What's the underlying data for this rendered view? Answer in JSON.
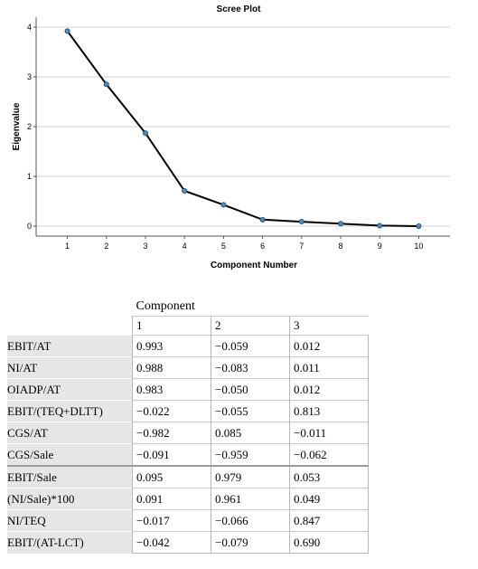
{
  "chart_data": {
    "type": "line",
    "title": "Scree Plot",
    "xlabel": "Component Number",
    "ylabel": "Eigenvalue",
    "x": [
      1,
      2,
      3,
      4,
      5,
      6,
      7,
      8,
      9,
      10
    ],
    "y": [
      3.92,
      2.85,
      1.87,
      0.71,
      0.43,
      0.13,
      0.09,
      0.05,
      0.01,
      0.0
    ],
    "xlim": [
      0.2,
      10.8
    ],
    "ylim": [
      -0.2,
      4.2
    ],
    "xticks": [
      1,
      2,
      3,
      4,
      5,
      6,
      7,
      8,
      9,
      10
    ],
    "yticks": [
      0,
      1,
      2,
      3,
      4
    ],
    "grid": "horizontal",
    "line_color": "#000000",
    "marker_color": "#4a90c8"
  },
  "table": {
    "group_header": "Component",
    "columns": [
      "1",
      "2",
      "3"
    ],
    "rows": [
      {
        "label": "EBIT/AT",
        "values": [
          "0.993",
          "−0.059",
          "0.012"
        ]
      },
      {
        "label": "NI/AT",
        "values": [
          "0.988",
          "−0.083",
          "0.011"
        ]
      },
      {
        "label": "OIADP/AT",
        "values": [
          "0.983",
          "−0.050",
          "0.012"
        ]
      },
      {
        "label": "EBIT/(TEQ+DLTT)",
        "values": [
          "−0.022",
          "−0.055",
          "0.813"
        ]
      },
      {
        "label": "CGS/AT",
        "values": [
          "−0.982",
          "0.085",
          "−0.011"
        ]
      },
      {
        "label": "CGS/Sale",
        "values": [
          "−0.091",
          "−0.959",
          "−0.062"
        ]
      },
      {
        "label": "EBIT/Sale",
        "values": [
          "0.095",
          "0.979",
          "0.053"
        ]
      },
      {
        "label": "(NI/Sale)*100",
        "values": [
          "0.091",
          "0.961",
          "0.049"
        ]
      },
      {
        "label": "NI/TEQ",
        "values": [
          "−0.017",
          "−0.066",
          "0.847"
        ]
      },
      {
        "label": "EBIT/(AT-LCT)",
        "values": [
          "−0.042",
          "−0.079",
          "0.690"
        ]
      }
    ]
  }
}
